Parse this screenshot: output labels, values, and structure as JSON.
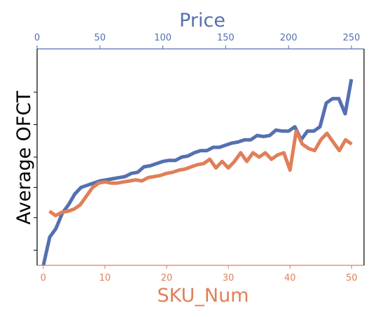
{
  "colors": {
    "price": "#5470b0",
    "sku": "#e07f58",
    "axis": "#000000"
  },
  "chart_data": {
    "type": "line",
    "title": "",
    "ylabel": "Average OFCT",
    "x_top": {
      "label": "Price",
      "range": [
        0,
        260
      ],
      "ticks": [
        0,
        50,
        100,
        150,
        200,
        250
      ],
      "tick_labels": [
        "0",
        "50",
        "100",
        "150",
        "200",
        "250"
      ]
    },
    "x_bottom": {
      "label": "SKU_Num",
      "range": [
        -1,
        52
      ],
      "ticks": [
        0,
        10,
        20,
        30,
        40,
        50
      ],
      "tick_labels": [
        "0",
        "10",
        "20",
        "30",
        "40",
        "50"
      ]
    },
    "y": {
      "range": [
        0,
        1
      ],
      "ticks": [
        0.07,
        0.22,
        0.36,
        0.5,
        0.65,
        0.8
      ],
      "tick_labels_shown": false
    },
    "series": [
      {
        "axis": "top",
        "color": "#5470b0",
        "x": [
          5,
          10,
          15,
          20,
          25,
          30,
          35,
          40,
          45,
          50,
          55,
          60,
          65,
          70,
          75,
          80,
          85,
          90,
          95,
          100,
          105,
          110,
          115,
          120,
          125,
          130,
          135,
          140,
          145,
          150,
          155,
          160,
          165,
          170,
          175,
          180,
          185,
          190,
          195,
          200,
          205,
          210,
          215,
          220,
          225,
          230,
          235,
          240,
          245,
          250
        ],
        "y": [
          0.0,
          0.13,
          0.17,
          0.24,
          0.28,
          0.33,
          0.36,
          0.37,
          0.38,
          0.39,
          0.395,
          0.4,
          0.405,
          0.41,
          0.425,
          0.43,
          0.455,
          0.46,
          0.47,
          0.48,
          0.485,
          0.485,
          0.5,
          0.505,
          0.52,
          0.53,
          0.53,
          0.545,
          0.545,
          0.555,
          0.565,
          0.57,
          0.58,
          0.58,
          0.6,
          0.595,
          0.6,
          0.625,
          0.62,
          0.62,
          0.64,
          0.58,
          0.62,
          0.62,
          0.64,
          0.75,
          0.77,
          0.77,
          0.7,
          0.86
        ]
      },
      {
        "axis": "bottom",
        "color": "#e07f58",
        "x": [
          1,
          2,
          3,
          4,
          5,
          6,
          7,
          8,
          9,
          10,
          11,
          12,
          13,
          14,
          15,
          16,
          17,
          18,
          19,
          20,
          21,
          22,
          23,
          24,
          25,
          26,
          27,
          28,
          29,
          30,
          31,
          32,
          33,
          34,
          35,
          36,
          37,
          38,
          39,
          40,
          41,
          42,
          43,
          44,
          45,
          46,
          47,
          48,
          49,
          50
        ],
        "y": [
          0.25,
          0.23,
          0.245,
          0.25,
          0.26,
          0.28,
          0.32,
          0.36,
          0.38,
          0.385,
          0.38,
          0.38,
          0.385,
          0.39,
          0.395,
          0.39,
          0.405,
          0.41,
          0.415,
          0.425,
          0.43,
          0.44,
          0.445,
          0.455,
          0.465,
          0.47,
          0.49,
          0.45,
          0.48,
          0.45,
          0.48,
          0.52,
          0.48,
          0.52,
          0.5,
          0.52,
          0.49,
          0.51,
          0.52,
          0.44,
          0.62,
          0.56,
          0.54,
          0.53,
          0.58,
          0.61,
          0.57,
          0.53,
          0.58,
          0.56
        ]
      }
    ]
  }
}
